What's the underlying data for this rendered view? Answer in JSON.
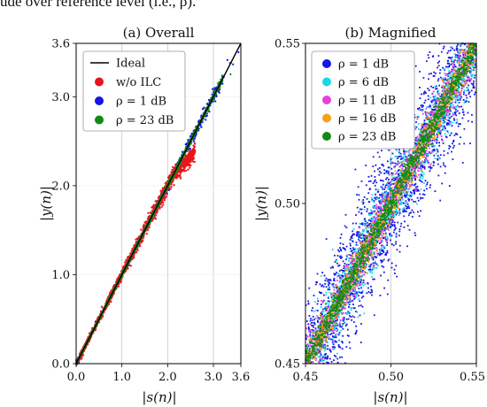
{
  "caption": "ude over reference level (i.e., ρ).",
  "chart_data": [
    {
      "type": "scatter",
      "title": "(a) Overall",
      "xlabel": "|s(n)|",
      "ylabel": "|y(n)|",
      "xlim": [
        0.0,
        3.6
      ],
      "ylim": [
        0.0,
        3.6
      ],
      "x_ticks": [
        "0.0",
        "1.0",
        "2.0",
        "3.0",
        "3.6"
      ],
      "y_ticks": [
        "0.0",
        "1.0",
        "2.0",
        "3.0",
        "3.6"
      ],
      "x_tick_values": [
        0.0,
        1.0,
        2.0,
        3.0,
        3.6
      ],
      "y_tick_values": [
        0.0,
        1.0,
        2.0,
        3.0,
        3.6
      ],
      "grid": "vertical",
      "legend_position": "top-left",
      "legend": [
        {
          "label": "Ideal",
          "color": "#000000",
          "marker": "line"
        },
        {
          "label": "w/o ILC",
          "color": "#e8141c",
          "marker": "dot"
        },
        {
          "label": "ρ = 1 dB",
          "color": "#1515e6",
          "marker": "dot"
        },
        {
          "label": "ρ = 23 dB",
          "color": "#138a13",
          "marker": "dot"
        }
      ],
      "series": [
        {
          "name": "Ideal",
          "kind": "line",
          "x": [
            0.0,
            3.6
          ],
          "y": [
            0.0,
            3.6
          ],
          "color": "#000000"
        },
        {
          "name": "w/o ILC",
          "kind": "scatter",
          "x_range": [
            0.0,
            2.6
          ],
          "compression_above": 2.1,
          "spread": 0.03,
          "color": "#e8141c"
        },
        {
          "name": "ρ = 1 dB",
          "kind": "scatter",
          "x_range": [
            0.0,
            3.2
          ],
          "spread": 0.02,
          "color": "#1515e6"
        },
        {
          "name": "ρ = 23 dB",
          "kind": "scatter",
          "x_range": [
            0.0,
            3.2
          ],
          "spread": 0.01,
          "color": "#138a13"
        }
      ]
    },
    {
      "type": "scatter",
      "title": "(b) Magnified",
      "xlabel": "|s(n)|",
      "ylabel": "|y(n)|",
      "xlim": [
        0.45,
        0.55
      ],
      "ylim": [
        0.45,
        0.55
      ],
      "x_ticks": [
        "0.45",
        "0.50",
        "0.55"
      ],
      "y_ticks": [
        "0.45",
        "0.50",
        "0.55"
      ],
      "x_tick_values": [
        0.45,
        0.5,
        0.55
      ],
      "y_tick_values": [
        0.45,
        0.5,
        0.55
      ],
      "grid": "vertical",
      "legend_position": "top-left",
      "legend": [
        {
          "label": "ρ = 1 dB",
          "color": "#1515e6"
        },
        {
          "label": "ρ = 6 dB",
          "color": "#19d8e8"
        },
        {
          "label": "ρ = 11 dB",
          "color": "#e83ee0"
        },
        {
          "label": "ρ = 16 dB",
          "color": "#f5a214"
        },
        {
          "label": "ρ = 23 dB",
          "color": "#138a13"
        }
      ],
      "series": [
        {
          "name": "ρ = 1 dB",
          "x_range": [
            0.45,
            0.55
          ],
          "spread": 0.0095,
          "color": "#1515e6"
        },
        {
          "name": "ρ = 6 dB",
          "x_range": [
            0.45,
            0.55
          ],
          "spread": 0.0055,
          "color": "#19d8e8"
        },
        {
          "name": "ρ = 11 dB",
          "x_range": [
            0.45,
            0.55
          ],
          "spread": 0.0038,
          "color": "#e83ee0"
        },
        {
          "name": "ρ = 16 dB",
          "x_range": [
            0.45,
            0.55
          ],
          "spread": 0.0028,
          "color": "#f5a214"
        },
        {
          "name": "ρ = 23 dB",
          "x_range": [
            0.45,
            0.55
          ],
          "spread": 0.002,
          "color": "#138a13"
        }
      ]
    }
  ]
}
